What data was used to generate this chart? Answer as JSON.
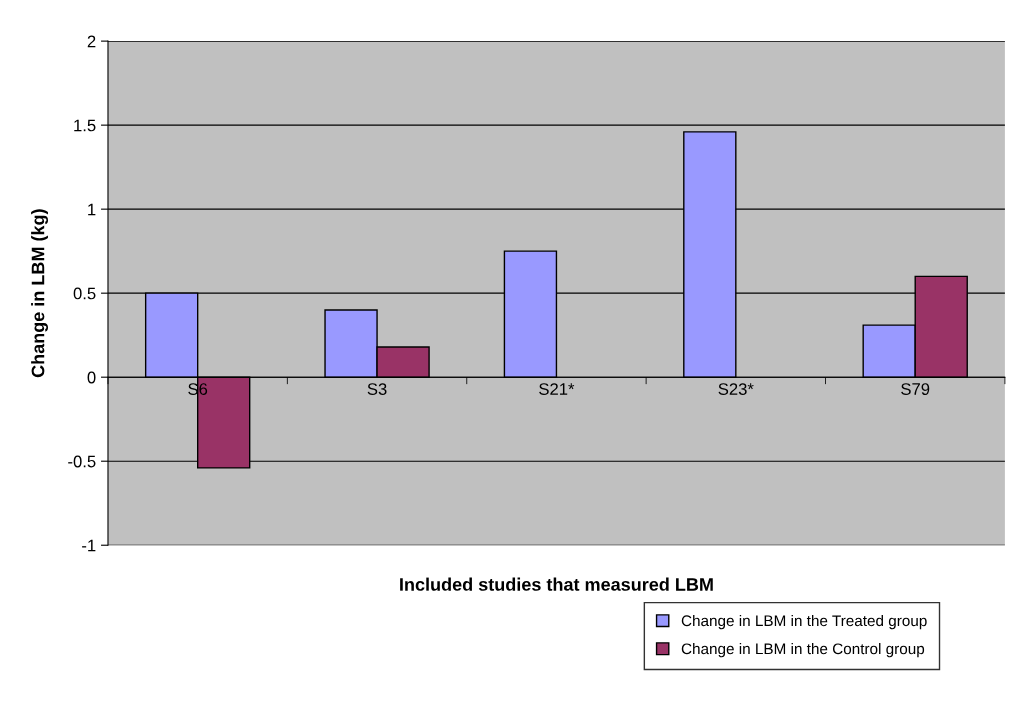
{
  "chart_data": {
    "type": "bar",
    "xlabel": "Included studies that measured LBM",
    "ylabel": "Change in LBM (kg)",
    "categories": [
      "S6",
      "S3",
      "S21*",
      "S23*",
      "S79"
    ],
    "series": [
      {
        "name": "Change in LBM in the Treated group",
        "color": "#9999ff",
        "values": [
          0.5,
          0.4,
          0.75,
          1.46,
          0.31
        ]
      },
      {
        "name": "Change in LBM in the Control group",
        "color": "#993366",
        "values": [
          -0.54,
          0.18,
          null,
          null,
          0.6
        ]
      }
    ],
    "ylim": [
      -1,
      2
    ],
    "yticks": [
      -1,
      -0.5,
      0,
      0.5,
      1,
      1.5,
      2
    ],
    "grid": "y",
    "legend": "bottom right"
  }
}
